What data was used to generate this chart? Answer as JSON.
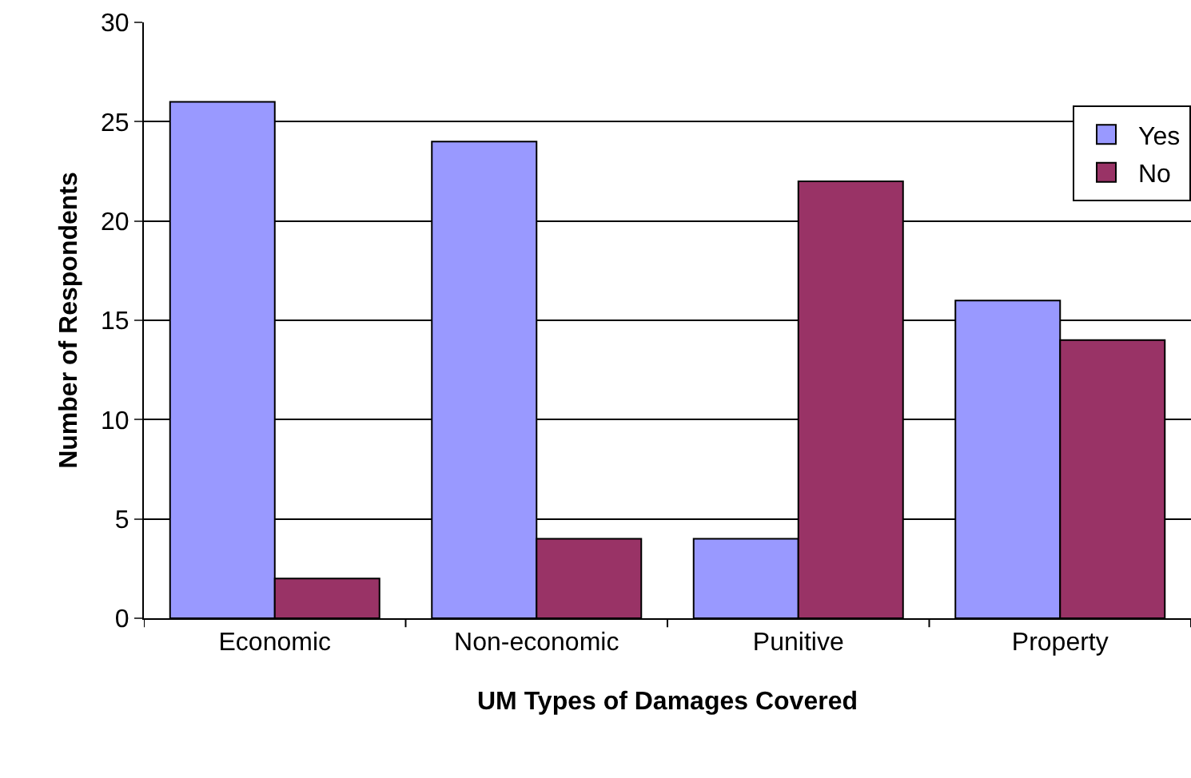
{
  "chart_data": {
    "type": "bar",
    "xlabel": "UM Types of Damages Covered",
    "ylabel": "Number of Respondents",
    "categories": [
      "Economic",
      "Non-economic",
      "Punitive",
      "Property"
    ],
    "series": [
      {
        "name": "Yes",
        "color": "#9999ff",
        "values": [
          26,
          24,
          4,
          16
        ]
      },
      {
        "name": "No",
        "color": "#993366",
        "values": [
          2,
          4,
          22,
          14
        ]
      }
    ],
    "ylim": [
      0,
      30
    ],
    "yticks": [
      0,
      5,
      10,
      15,
      20,
      25,
      30
    ],
    "grid": "y",
    "legend": "top right"
  }
}
